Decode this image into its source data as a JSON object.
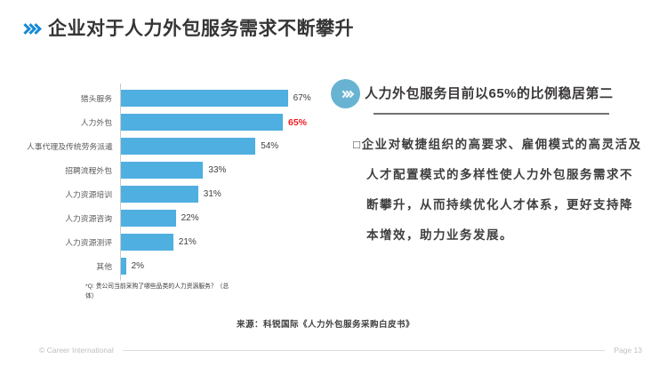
{
  "slide": {
    "title": "企业对于人力外包服务需求不断攀升",
    "source": "来源：科锐国际《人力外包服务采购白皮书》",
    "footer": {
      "copyright": "© Career International",
      "page": "Page 13"
    }
  },
  "chart_data": {
    "type": "bar",
    "orientation": "horizontal",
    "categories": [
      "猎头服务",
      "人力外包",
      "人事代理及传统劳务派遣",
      "招聘流程外包",
      "人力资源培训",
      "人力资源咨询",
      "人力资源测评",
      "其他"
    ],
    "values": [
      67,
      65,
      54,
      33,
      31,
      22,
      21,
      2
    ],
    "value_labels": [
      "67%",
      "65%",
      "54%",
      "33%",
      "31%",
      "22%",
      "21%",
      "2%"
    ],
    "highlight_index": 1,
    "bar_color": "#4FAFE0",
    "highlight_value_color": "#ED1C24",
    "xlim": [
      0,
      70
    ],
    "grid": false,
    "footnote": "*Q: 贵公司当前采购了哪些品类的人力资源服务？（总体）"
  },
  "right_panel": {
    "heading": "人力外包服务目前以65%的比例稳居第二",
    "bullet": "□",
    "body": "企业对敏捷组织的高要求、雇佣模式的高灵活及人才配置模式的多样性使人力外包服务需求不断攀升，从而持续优化人才体系，更好支持降本增效，助力业务发展。"
  },
  "colors": {
    "accent_blue": "#1789D6",
    "bar_blue": "#4FAFE0",
    "highlight_red": "#ED1C24",
    "icon_circle": "#69B3D2"
  }
}
